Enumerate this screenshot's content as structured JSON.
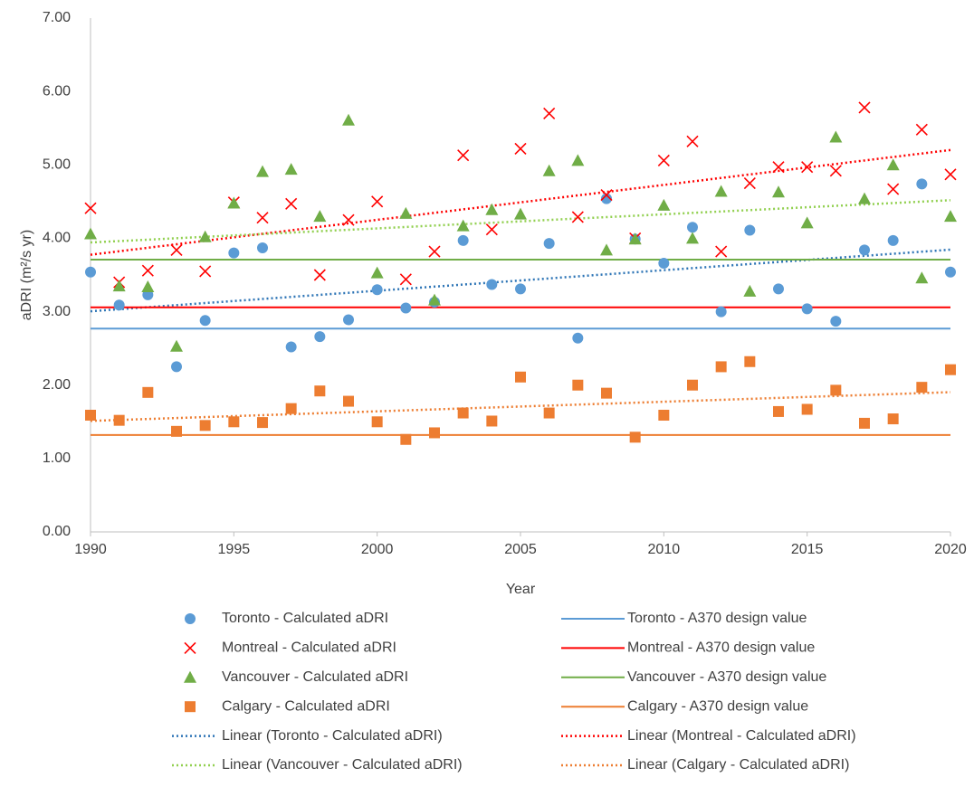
{
  "chart_data": {
    "type": "scatter",
    "x_label": "Year",
    "y_label": "aDRI (m²/s yr)",
    "x": [
      1990,
      1991,
      1992,
      1993,
      1994,
      1995,
      1996,
      1997,
      1998,
      1999,
      2000,
      2001,
      2002,
      2003,
      2004,
      2005,
      2006,
      2007,
      2008,
      2009,
      2010,
      2011,
      2012,
      2013,
      2014,
      2015,
      2016,
      2017,
      2018,
      2019,
      2020
    ],
    "xlim": [
      1990,
      2020
    ],
    "xticks": [
      1990,
      1995,
      2000,
      2005,
      2010,
      2015,
      2020
    ],
    "ylim": [
      0,
      7
    ],
    "yticks": [
      {
        "value": 0,
        "label": "0.00"
      },
      {
        "value": 1,
        "label": "1.00"
      },
      {
        "value": 2,
        "label": "2.00"
      },
      {
        "value": 3,
        "label": "3.00"
      },
      {
        "value": 4,
        "label": "4.00"
      },
      {
        "value": 5,
        "label": "5.00"
      },
      {
        "value": 6,
        "label": "6.00"
      },
      {
        "value": 7,
        "label": "7.00"
      }
    ],
    "grid": false,
    "series": [
      {
        "name": "Toronto - Calculated aDRI",
        "color": "#5b9bd5",
        "marker": "circle",
        "values": [
          3.54,
          3.09,
          3.23,
          2.25,
          2.88,
          3.8,
          3.87,
          2.52,
          2.66,
          2.89,
          3.3,
          3.05,
          3.13,
          3.97,
          3.37,
          3.31,
          3.93,
          2.64,
          4.54,
          3.99,
          3.66,
          4.15,
          3.0,
          4.11,
          3.31,
          3.04,
          2.87,
          3.84,
          3.97,
          4.74,
          3.54
        ],
        "design": {
          "name": "Toronto - A370 design value",
          "value": 2.77,
          "color": "#5b9bd5"
        },
        "trendline": {
          "name": "Linear (Toronto - Calculated aDRI)",
          "color": "#2e75b6"
        }
      },
      {
        "name": "Montreal - Calculated aDRI",
        "color": "#ff0000",
        "marker": "x",
        "values": [
          4.41,
          3.4,
          3.56,
          3.84,
          3.55,
          4.49,
          4.28,
          4.47,
          3.5,
          4.25,
          4.5,
          3.44,
          3.82,
          5.13,
          4.12,
          5.22,
          5.7,
          4.29,
          4.59,
          4.0,
          5.06,
          5.32,
          3.82,
          4.75,
          4.97,
          4.97,
          4.92,
          5.78,
          4.67,
          5.48,
          4.87
        ],
        "design": {
          "name": "Montreal - A370 design value",
          "value": 3.06,
          "color": "#ff0000"
        },
        "trendline": {
          "name": "Linear (Montreal - Calculated aDRI)",
          "color": "#ff0000"
        }
      },
      {
        "name": "Vancouver - Calculated aDRI",
        "color": "#70ad47",
        "marker": "triangle",
        "values": [
          4.06,
          3.35,
          3.34,
          2.53,
          4.02,
          4.48,
          4.91,
          4.94,
          4.3,
          5.61,
          3.53,
          4.34,
          3.16,
          4.17,
          4.39,
          4.33,
          4.92,
          5.06,
          3.84,
          3.99,
          4.45,
          4.0,
          4.64,
          3.28,
          4.63,
          4.21,
          5.38,
          4.54,
          5.0,
          3.46,
          4.3
        ],
        "design": {
          "name": "Vancouver - A370 design value",
          "value": 3.71,
          "color": "#70ad47"
        },
        "trendline": {
          "name": "Linear (Vancouver - Calculated aDRI)",
          "color": "#92d050"
        }
      },
      {
        "name": "Calgary - Calculated aDRI",
        "color": "#ed7d31",
        "marker": "square",
        "values": [
          1.59,
          1.52,
          1.9,
          1.37,
          1.45,
          1.5,
          1.49,
          1.68,
          1.92,
          1.78,
          1.5,
          1.26,
          1.35,
          1.62,
          1.51,
          2.11,
          1.62,
          2.0,
          1.89,
          1.29,
          1.59,
          2.0,
          2.25,
          2.32,
          1.64,
          1.67,
          1.93,
          1.48,
          1.54,
          1.97,
          2.21
        ],
        "design": {
          "name": "Calgary - A370 design value",
          "value": 1.32,
          "color": "#ed7d31"
        },
        "trendline": {
          "name": "Linear (Calgary - Calculated aDRI)",
          "color": "#ed7d31"
        }
      }
    ]
  }
}
